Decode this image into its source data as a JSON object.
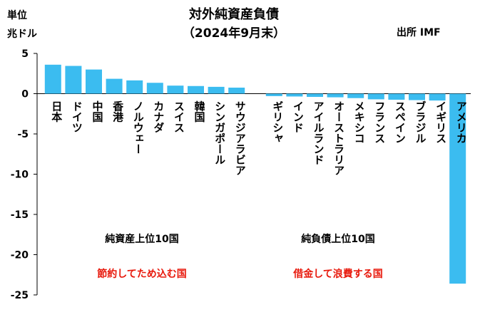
{
  "chart_data": {
    "type": "bar",
    "title": "対外純資産負債",
    "subtitle": "（2024年9月末）",
    "unit_label_line1": "単位",
    "unit_label_line2": "兆ドル",
    "source": "出所 IMF",
    "ylim": [
      -25,
      5
    ],
    "yticks": [
      5,
      0,
      -5,
      -10,
      -15,
      -20,
      -25
    ],
    "grid": false,
    "bar_color": "#3bbcf0",
    "groups": [
      {
        "name": "純資産上位10国",
        "caption": "節約してため込む国",
        "caption_color": "#e8190c",
        "categories": [
          "日本",
          "ドイツ",
          "中国",
          "香港",
          "ノルウェー",
          "カナダ",
          "スイス",
          "韓国",
          "シンガポール",
          "サウジアラビア"
        ],
        "values": [
          3.6,
          3.45,
          3.0,
          1.85,
          1.65,
          1.35,
          1.0,
          0.95,
          0.85,
          0.75
        ]
      },
      {
        "name": "純負債上位10国",
        "caption": "借金して浪費する国",
        "caption_color": "#e8190c",
        "categories": [
          "ギリシャ",
          "インド",
          "アイルランド",
          "オーストラリア",
          "メキシコ",
          "フランス",
          "スペイン",
          "ブラジル",
          "イギリス",
          "アメリカ"
        ],
        "values": [
          -0.3,
          -0.35,
          -0.4,
          -0.45,
          -0.55,
          -0.7,
          -0.75,
          -0.8,
          -0.85,
          -23.6
        ]
      }
    ]
  }
}
